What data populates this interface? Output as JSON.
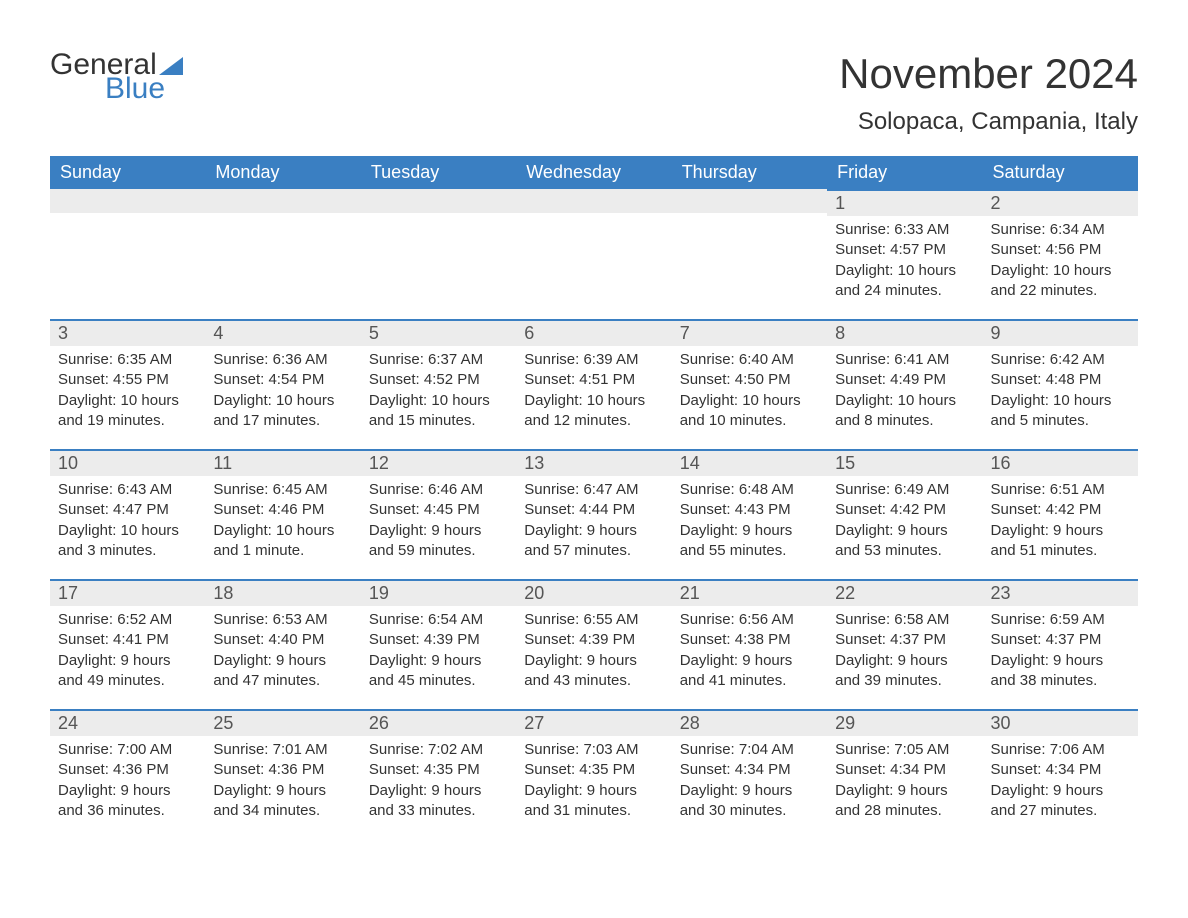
{
  "brand": {
    "general": "General",
    "blue": "Blue",
    "accent_color": "#3a7fc2"
  },
  "title": "November 2024",
  "location": "Solopaca, Campania, Italy",
  "colors": {
    "header_bg": "#3a7fc2",
    "header_text": "#ffffff",
    "daynum_bg": "#ececec",
    "border_top": "#3a7fc2",
    "body_text": "#333333",
    "page_bg": "#ffffff"
  },
  "typography": {
    "title_fontsize": 42,
    "location_fontsize": 24,
    "header_fontsize": 18,
    "daynum_fontsize": 18,
    "body_fontsize": 15
  },
  "day_labels": [
    "Sunday",
    "Monday",
    "Tuesday",
    "Wednesday",
    "Thursday",
    "Friday",
    "Saturday"
  ],
  "weeks": [
    [
      null,
      null,
      null,
      null,
      null,
      {
        "n": "1",
        "sunrise": "Sunrise: 6:33 AM",
        "sunset": "Sunset: 4:57 PM",
        "daylight": "Daylight: 10 hours and 24 minutes."
      },
      {
        "n": "2",
        "sunrise": "Sunrise: 6:34 AM",
        "sunset": "Sunset: 4:56 PM",
        "daylight": "Daylight: 10 hours and 22 minutes."
      }
    ],
    [
      {
        "n": "3",
        "sunrise": "Sunrise: 6:35 AM",
        "sunset": "Sunset: 4:55 PM",
        "daylight": "Daylight: 10 hours and 19 minutes."
      },
      {
        "n": "4",
        "sunrise": "Sunrise: 6:36 AM",
        "sunset": "Sunset: 4:54 PM",
        "daylight": "Daylight: 10 hours and 17 minutes."
      },
      {
        "n": "5",
        "sunrise": "Sunrise: 6:37 AM",
        "sunset": "Sunset: 4:52 PM",
        "daylight": "Daylight: 10 hours and 15 minutes."
      },
      {
        "n": "6",
        "sunrise": "Sunrise: 6:39 AM",
        "sunset": "Sunset: 4:51 PM",
        "daylight": "Daylight: 10 hours and 12 minutes."
      },
      {
        "n": "7",
        "sunrise": "Sunrise: 6:40 AM",
        "sunset": "Sunset: 4:50 PM",
        "daylight": "Daylight: 10 hours and 10 minutes."
      },
      {
        "n": "8",
        "sunrise": "Sunrise: 6:41 AM",
        "sunset": "Sunset: 4:49 PM",
        "daylight": "Daylight: 10 hours and 8 minutes."
      },
      {
        "n": "9",
        "sunrise": "Sunrise: 6:42 AM",
        "sunset": "Sunset: 4:48 PM",
        "daylight": "Daylight: 10 hours and 5 minutes."
      }
    ],
    [
      {
        "n": "10",
        "sunrise": "Sunrise: 6:43 AM",
        "sunset": "Sunset: 4:47 PM",
        "daylight": "Daylight: 10 hours and 3 minutes."
      },
      {
        "n": "11",
        "sunrise": "Sunrise: 6:45 AM",
        "sunset": "Sunset: 4:46 PM",
        "daylight": "Daylight: 10 hours and 1 minute."
      },
      {
        "n": "12",
        "sunrise": "Sunrise: 6:46 AM",
        "sunset": "Sunset: 4:45 PM",
        "daylight": "Daylight: 9 hours and 59 minutes."
      },
      {
        "n": "13",
        "sunrise": "Sunrise: 6:47 AM",
        "sunset": "Sunset: 4:44 PM",
        "daylight": "Daylight: 9 hours and 57 minutes."
      },
      {
        "n": "14",
        "sunrise": "Sunrise: 6:48 AM",
        "sunset": "Sunset: 4:43 PM",
        "daylight": "Daylight: 9 hours and 55 minutes."
      },
      {
        "n": "15",
        "sunrise": "Sunrise: 6:49 AM",
        "sunset": "Sunset: 4:42 PM",
        "daylight": "Daylight: 9 hours and 53 minutes."
      },
      {
        "n": "16",
        "sunrise": "Sunrise: 6:51 AM",
        "sunset": "Sunset: 4:42 PM",
        "daylight": "Daylight: 9 hours and 51 minutes."
      }
    ],
    [
      {
        "n": "17",
        "sunrise": "Sunrise: 6:52 AM",
        "sunset": "Sunset: 4:41 PM",
        "daylight": "Daylight: 9 hours and 49 minutes."
      },
      {
        "n": "18",
        "sunrise": "Sunrise: 6:53 AM",
        "sunset": "Sunset: 4:40 PM",
        "daylight": "Daylight: 9 hours and 47 minutes."
      },
      {
        "n": "19",
        "sunrise": "Sunrise: 6:54 AM",
        "sunset": "Sunset: 4:39 PM",
        "daylight": "Daylight: 9 hours and 45 minutes."
      },
      {
        "n": "20",
        "sunrise": "Sunrise: 6:55 AM",
        "sunset": "Sunset: 4:39 PM",
        "daylight": "Daylight: 9 hours and 43 minutes."
      },
      {
        "n": "21",
        "sunrise": "Sunrise: 6:56 AM",
        "sunset": "Sunset: 4:38 PM",
        "daylight": "Daylight: 9 hours and 41 minutes."
      },
      {
        "n": "22",
        "sunrise": "Sunrise: 6:58 AM",
        "sunset": "Sunset: 4:37 PM",
        "daylight": "Daylight: 9 hours and 39 minutes."
      },
      {
        "n": "23",
        "sunrise": "Sunrise: 6:59 AM",
        "sunset": "Sunset: 4:37 PM",
        "daylight": "Daylight: 9 hours and 38 minutes."
      }
    ],
    [
      {
        "n": "24",
        "sunrise": "Sunrise: 7:00 AM",
        "sunset": "Sunset: 4:36 PM",
        "daylight": "Daylight: 9 hours and 36 minutes."
      },
      {
        "n": "25",
        "sunrise": "Sunrise: 7:01 AM",
        "sunset": "Sunset: 4:36 PM",
        "daylight": "Daylight: 9 hours and 34 minutes."
      },
      {
        "n": "26",
        "sunrise": "Sunrise: 7:02 AM",
        "sunset": "Sunset: 4:35 PM",
        "daylight": "Daylight: 9 hours and 33 minutes."
      },
      {
        "n": "27",
        "sunrise": "Sunrise: 7:03 AM",
        "sunset": "Sunset: 4:35 PM",
        "daylight": "Daylight: 9 hours and 31 minutes."
      },
      {
        "n": "28",
        "sunrise": "Sunrise: 7:04 AM",
        "sunset": "Sunset: 4:34 PM",
        "daylight": "Daylight: 9 hours and 30 minutes."
      },
      {
        "n": "29",
        "sunrise": "Sunrise: 7:05 AM",
        "sunset": "Sunset: 4:34 PM",
        "daylight": "Daylight: 9 hours and 28 minutes."
      },
      {
        "n": "30",
        "sunrise": "Sunrise: 7:06 AM",
        "sunset": "Sunset: 4:34 PM",
        "daylight": "Daylight: 9 hours and 27 minutes."
      }
    ]
  ]
}
